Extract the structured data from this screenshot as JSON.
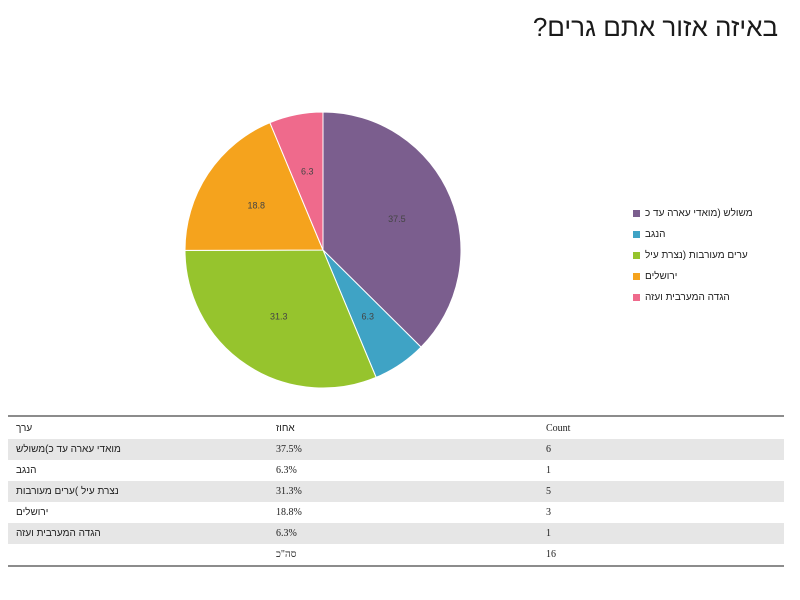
{
  "chart_data": {
    "type": "pie",
    "title": "באיזה אזור אתם גרים?",
    "categories": [
      "משולש (מואדי עארה עד כ",
      "הנגב",
      "ערים מעורבות (נצרת עיל",
      "ירושלים",
      "הגדה המערבית ועזה"
    ],
    "values": [
      37.5,
      6.3,
      31.3,
      18.8,
      6.3
    ],
    "data_labels": [
      "37.5",
      "6.3",
      "31.3",
      "18.8",
      "6.3"
    ],
    "colors": [
      "#7b5e8e",
      "#3fa3c5",
      "#96c42d",
      "#f5a31d",
      "#ef6a8c"
    ],
    "legend_position": "right"
  },
  "table": {
    "headers": [
      "ערך",
      "אחוז",
      "Count"
    ],
    "rows": [
      [
        "מואדי עארה עד כ)משולש",
        "37.5%",
        "6"
      ],
      [
        "הנגב",
        "6.3%",
        "1"
      ],
      [
        "נצרת עיל )ערים מעורבות",
        "31.3%",
        "5"
      ],
      [
        "ירושלים",
        "18.8%",
        "3"
      ],
      [
        "הגדה המערבית ועזה",
        "6.3%",
        "1"
      ]
    ],
    "total": [
      "",
      "סה\"כ",
      "16"
    ]
  }
}
